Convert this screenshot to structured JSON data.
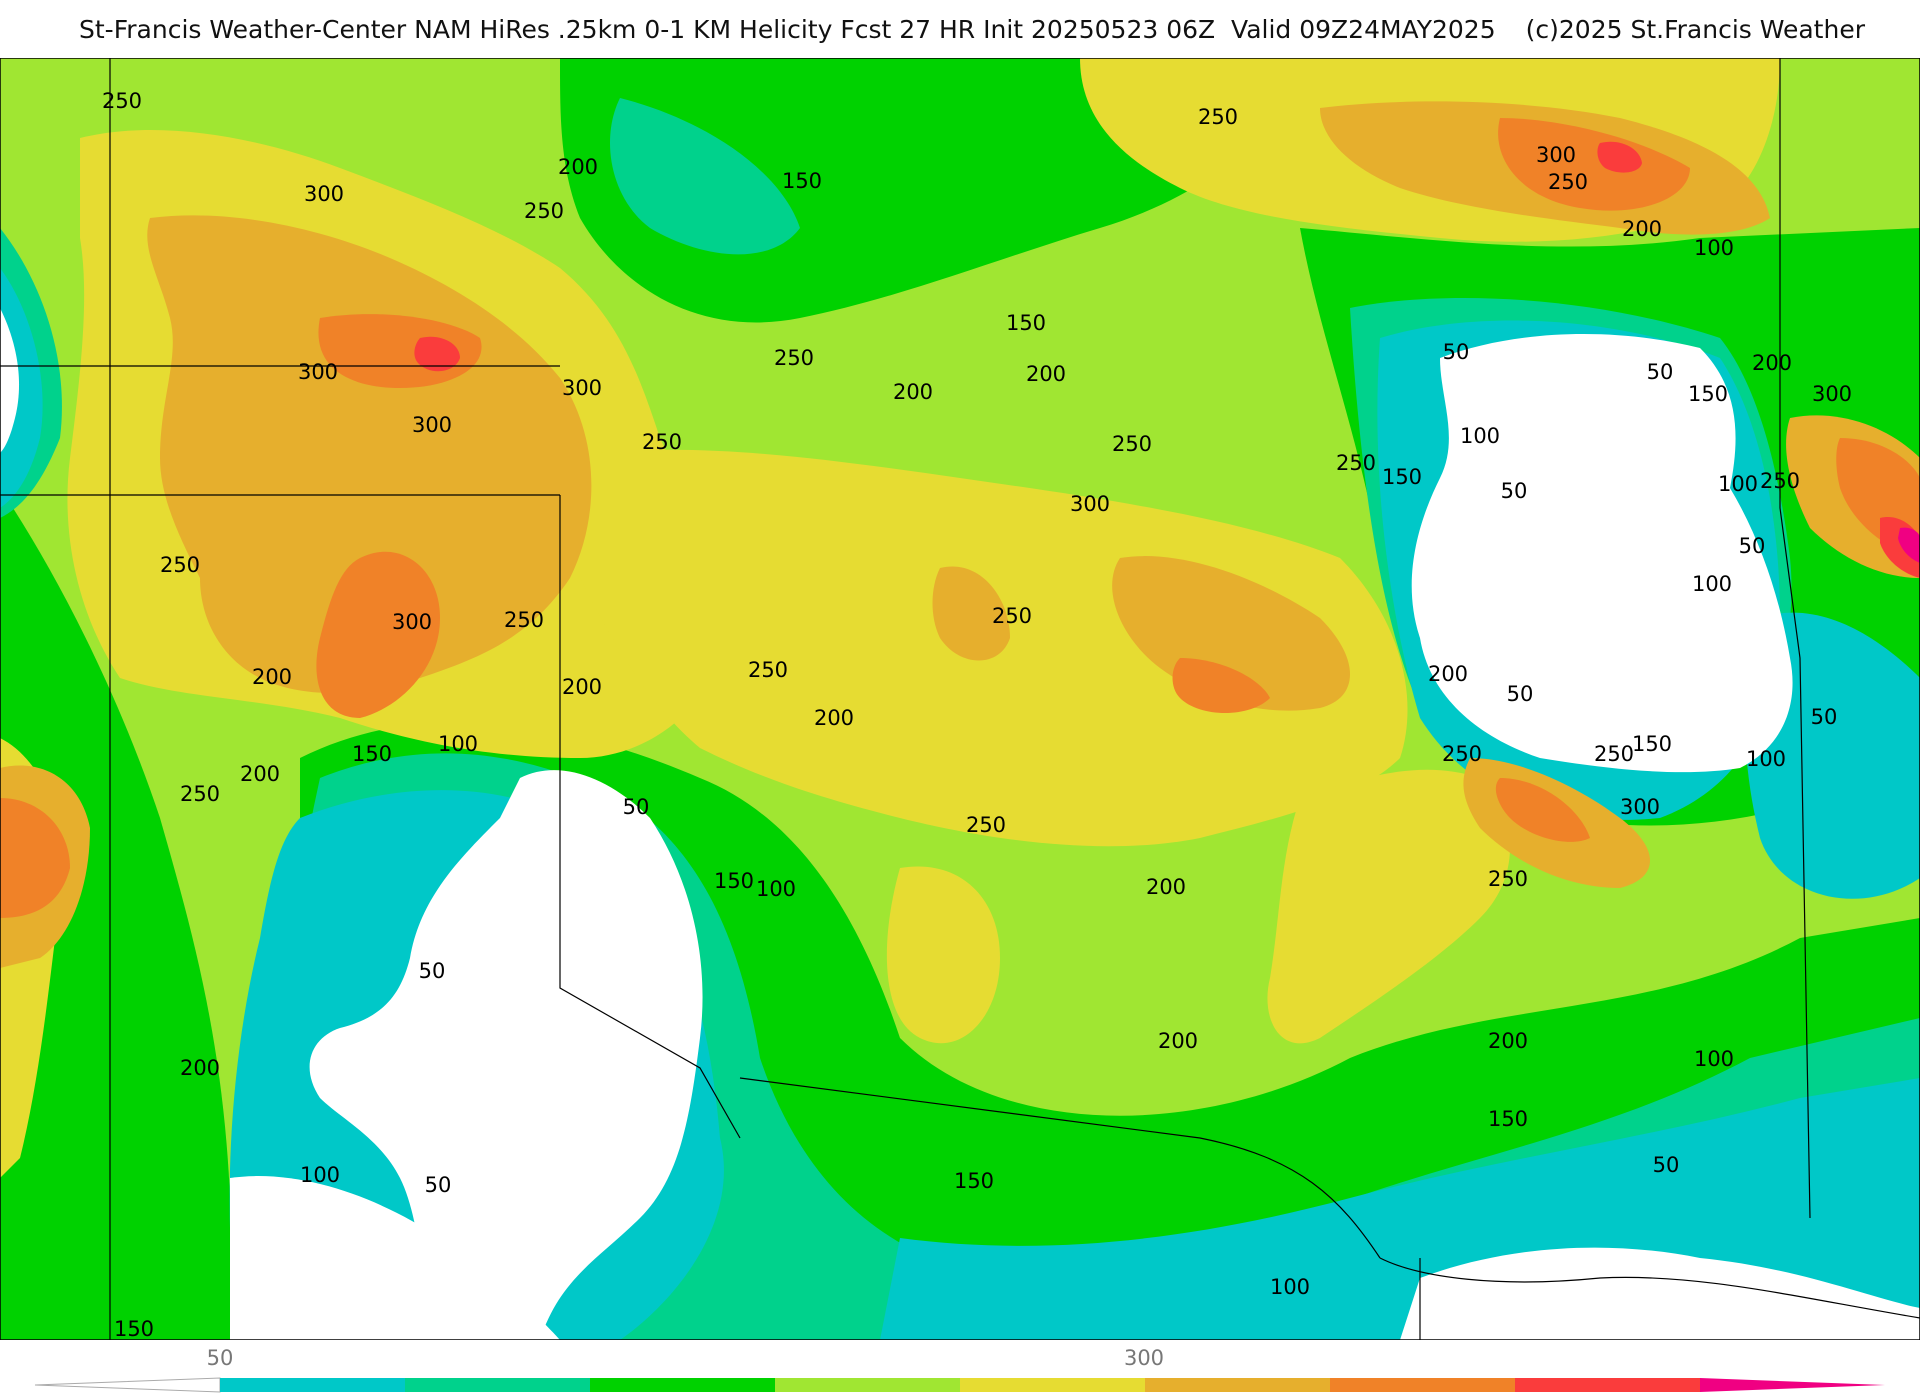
{
  "header": {
    "title": "St-Francis Weather-Center NAM HiRes .25km 0-1 KM Helicity Fcst 27 HR Init 20250523 06Z  Valid 09Z24MAY2025",
    "credit": "(c)2025 St.Francis Weather"
  },
  "legend": {
    "tick_labels": [
      "50",
      "300"
    ],
    "colors": [
      "#ffffff",
      "#00c8c8",
      "#00d28c",
      "#00d200",
      "#a0e632",
      "#e6dc32",
      "#e6af2d",
      "#f08228",
      "#fa3c3c",
      "#f00082"
    ]
  },
  "contour_labels": [
    "50",
    "100",
    "150",
    "200",
    "250",
    "300"
  ],
  "palette": {
    "white": "#ffffff",
    "v50": "#00c8c8",
    "v100": "#00d28c",
    "v150": "#00d200",
    "v200": "#a0e632",
    "v250": "#e6dc32",
    "v300": "#e6af2d",
    "v350": "#f08228",
    "v400": "#fa3c3c",
    "v450": "#f00082"
  }
}
